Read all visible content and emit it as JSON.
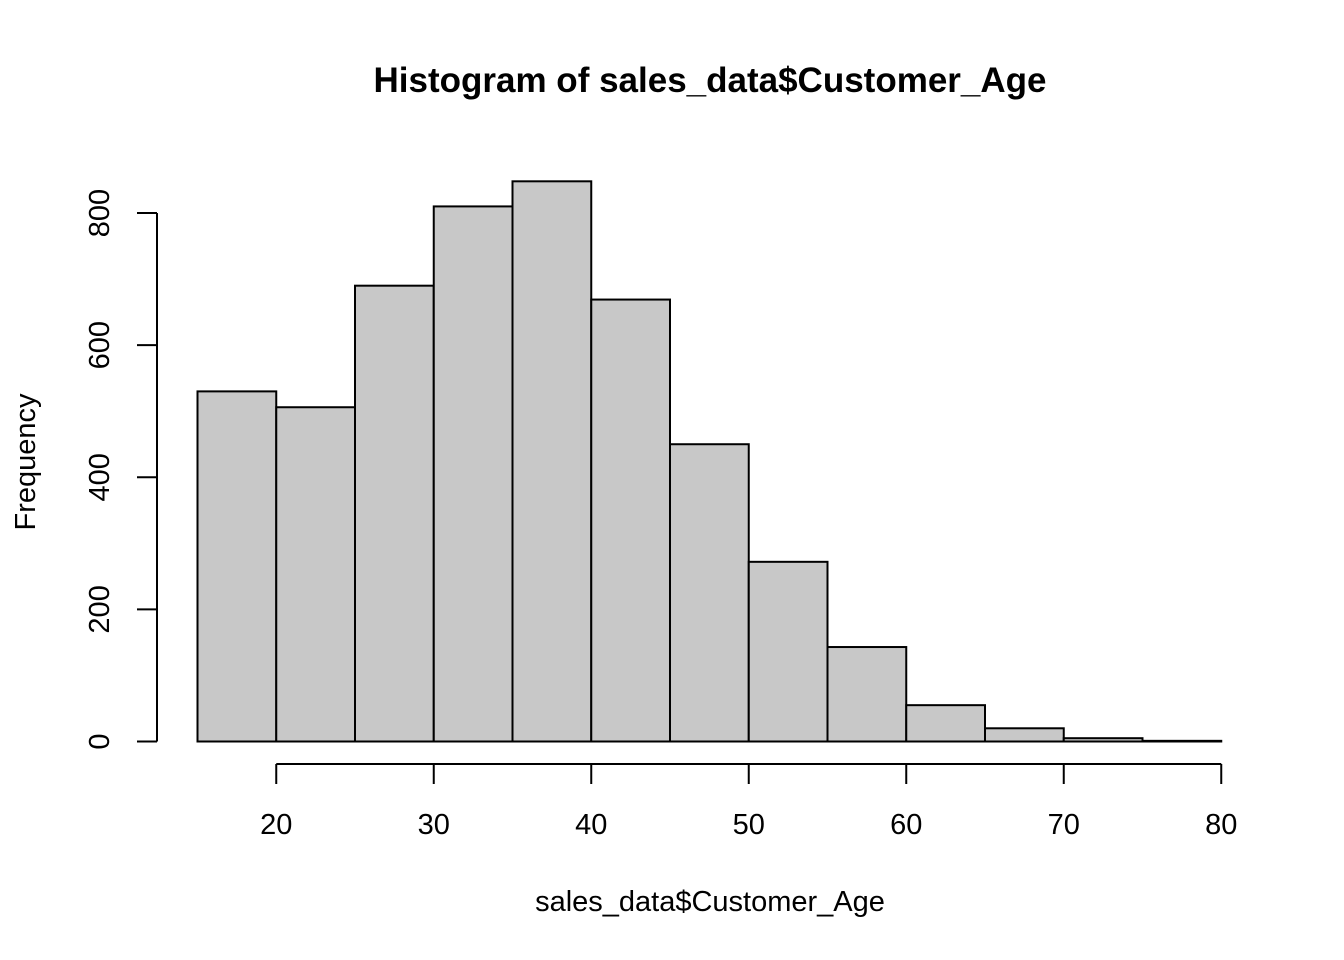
{
  "chart_data": {
    "type": "bar",
    "title": "Histogram of sales_data$Customer_Age",
    "xlabel": "sales_data$Customer_Age",
    "ylabel": "Frequency",
    "bin_edges": [
      15,
      20,
      25,
      30,
      35,
      40,
      45,
      50,
      55,
      60,
      65,
      70,
      75,
      80
    ],
    "values": [
      530,
      506,
      690,
      810,
      848,
      669,
      450,
      272,
      143,
      55,
      20,
      5,
      1
    ],
    "x_ticks": [
      "20",
      "30",
      "40",
      "50",
      "60",
      "70",
      "80"
    ],
    "y_ticks": [
      "0",
      "200",
      "400",
      "600",
      "800"
    ],
    "xlim": [
      15,
      80
    ],
    "ylim": [
      0,
      800
    ],
    "grid": false,
    "bar_fill": "#c8c8c8",
    "bar_stroke": "#000000"
  }
}
